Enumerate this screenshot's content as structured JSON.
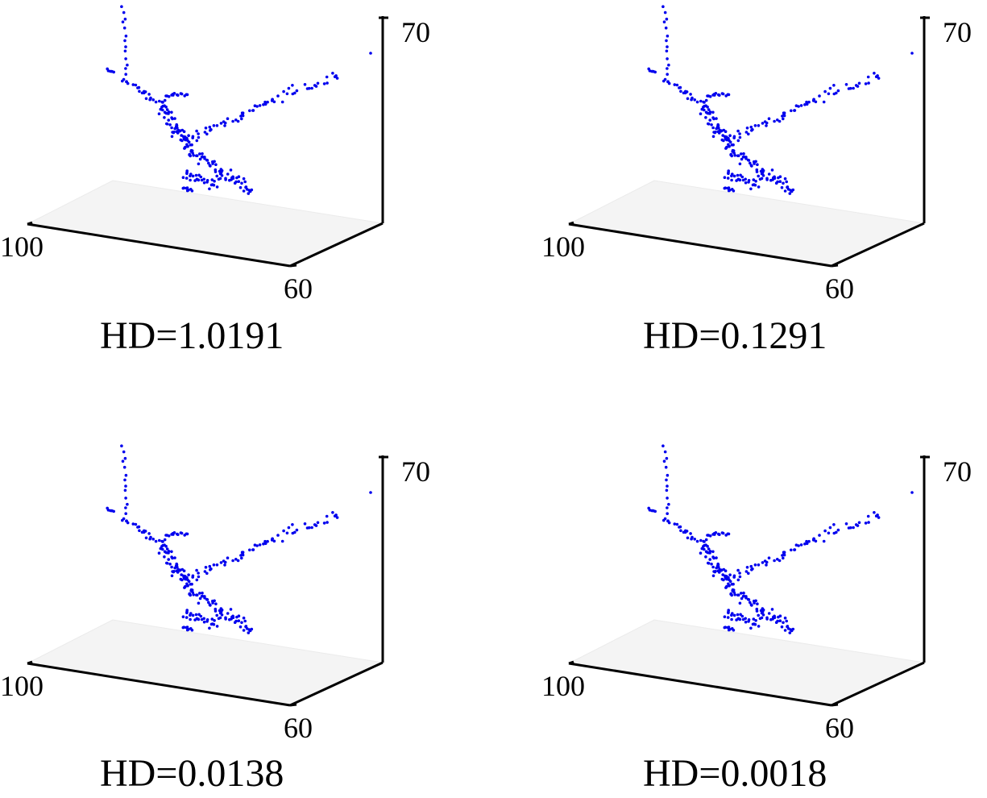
{
  "chart_data": [
    {
      "type": "scatter",
      "caption": "HD=1.0191",
      "tick_labels": {
        "x": "100",
        "y": "60",
        "z": "70"
      },
      "grid": false,
      "colors": {
        "points": "#0000ee",
        "floor": "#f2f2f2",
        "axes": "#000000"
      }
    },
    {
      "type": "scatter",
      "caption": "HD=0.1291",
      "tick_labels": {
        "x": "100",
        "y": "60",
        "z": "70"
      },
      "grid": false,
      "colors": {
        "points": "#0000ee",
        "floor": "#f2f2f2",
        "axes": "#000000"
      }
    },
    {
      "type": "scatter",
      "caption": "HD=0.0138",
      "tick_labels": {
        "x": "100",
        "y": "60",
        "z": "70"
      },
      "grid": false,
      "colors": {
        "points": "#0000ee",
        "floor": "#f2f2f2",
        "axes": "#000000"
      }
    },
    {
      "type": "scatter",
      "caption": "HD=0.0018",
      "tick_labels": {
        "x": "100",
        "y": "60",
        "z": "70"
      },
      "grid": false,
      "colors": {
        "points": "#0000ee",
        "floor": "#f2f2f2",
        "axes": "#000000"
      }
    }
  ]
}
